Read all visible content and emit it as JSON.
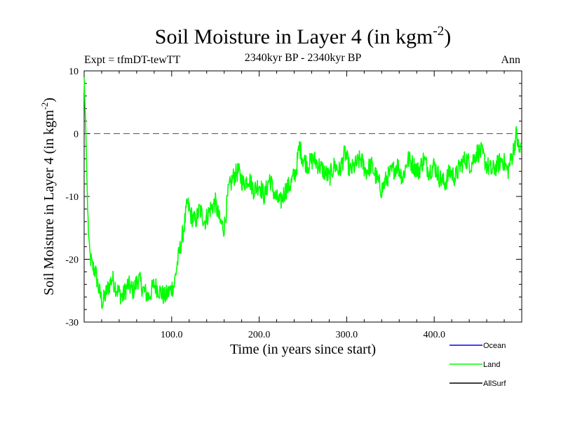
{
  "chart_data": {
    "type": "line",
    "title": "Soil Moisture in Layer 4 (in kgm",
    "title_sup": "-2",
    "title_close": ")",
    "subtitle": "2340kyr BP - 2340kyr BP",
    "left_label": "Expt = tfmDT-tewTT",
    "right_label": "Ann",
    "xlabel": "Time (in years since start)",
    "ylabel": "Soil Moisture in Layer 4 (in kgm",
    "ylabel_sup": "-2",
    "ylabel_close": ")",
    "xlim": [
      0,
      500
    ],
    "ylim": [
      -30,
      10
    ],
    "x_ticks": [
      100,
      200,
      300,
      400
    ],
    "x_tick_labels": [
      "100.0",
      "200.0",
      "300.0",
      "400.0"
    ],
    "y_ticks": [
      -30,
      -20,
      -10,
      0,
      10
    ],
    "y_tick_labels": [
      "-30",
      "-20",
      "-10",
      "0",
      "10"
    ],
    "reference_line": {
      "y": 0,
      "style": "dashed",
      "color": "#555555"
    },
    "legend": [
      {
        "name": "Ocean",
        "color": "#0000ff"
      },
      {
        "name": "Land",
        "color": "#00ff00"
      },
      {
        "name": "AllSurf",
        "color": "#000000"
      }
    ],
    "series": [
      {
        "name": "Land",
        "color": "#00ff00",
        "anchors": [
          [
            0,
            9
          ],
          [
            2,
            0
          ],
          [
            4,
            -12
          ],
          [
            6,
            -19
          ],
          [
            9,
            -21
          ],
          [
            13,
            -22
          ],
          [
            17,
            -25
          ],
          [
            21,
            -27
          ],
          [
            26,
            -25
          ],
          [
            32,
            -23
          ],
          [
            38,
            -25
          ],
          [
            44,
            -26
          ],
          [
            50,
            -24
          ],
          [
            56,
            -25
          ],
          [
            62,
            -23
          ],
          [
            68,
            -25
          ],
          [
            74,
            -26
          ],
          [
            80,
            -24
          ],
          [
            86,
            -25
          ],
          [
            92,
            -26
          ],
          [
            98,
            -25
          ],
          [
            103,
            -24
          ],
          [
            106,
            -21
          ],
          [
            110,
            -18
          ],
          [
            114,
            -15
          ],
          [
            118,
            -11
          ],
          [
            122,
            -13
          ],
          [
            127,
            -14
          ],
          [
            132,
            -12
          ],
          [
            138,
            -14
          ],
          [
            144,
            -12
          ],
          [
            150,
            -11
          ],
          [
            155,
            -14
          ],
          [
            160,
            -15
          ],
          [
            165,
            -9
          ],
          [
            170,
            -7
          ],
          [
            176,
            -6
          ],
          [
            182,
            -8
          ],
          [
            188,
            -7
          ],
          [
            194,
            -9
          ],
          [
            200,
            -8
          ],
          [
            206,
            -10
          ],
          [
            212,
            -7
          ],
          [
            218,
            -10
          ],
          [
            224,
            -11
          ],
          [
            230,
            -9
          ],
          [
            236,
            -8
          ],
          [
            242,
            -6
          ],
          [
            246,
            -2
          ],
          [
            250,
            -4
          ],
          [
            256,
            -5
          ],
          [
            262,
            -4
          ],
          [
            268,
            -5
          ],
          [
            274,
            -6
          ],
          [
            280,
            -7
          ],
          [
            286,
            -5
          ],
          [
            292,
            -6
          ],
          [
            298,
            -3
          ],
          [
            304,
            -6
          ],
          [
            310,
            -5
          ],
          [
            316,
            -4
          ],
          [
            322,
            -6
          ],
          [
            328,
            -5
          ],
          [
            334,
            -7
          ],
          [
            340,
            -9
          ],
          [
            346,
            -7
          ],
          [
            352,
            -6
          ],
          [
            358,
            -5
          ],
          [
            364,
            -7
          ],
          [
            370,
            -4
          ],
          [
            376,
            -5
          ],
          [
            382,
            -6
          ],
          [
            388,
            -4
          ],
          [
            394,
            -6
          ],
          [
            400,
            -5
          ],
          [
            406,
            -7
          ],
          [
            412,
            -8
          ],
          [
            418,
            -6
          ],
          [
            424,
            -7
          ],
          [
            430,
            -5
          ],
          [
            436,
            -4
          ],
          [
            442,
            -5
          ],
          [
            448,
            -3
          ],
          [
            454,
            -3
          ],
          [
            460,
            -5
          ],
          [
            466,
            -6
          ],
          [
            472,
            -5
          ],
          [
            478,
            -4
          ],
          [
            484,
            -6
          ],
          [
            490,
            -3
          ],
          [
            494,
            0
          ],
          [
            497,
            -3
          ],
          [
            500,
            -2
          ]
        ]
      }
    ]
  }
}
